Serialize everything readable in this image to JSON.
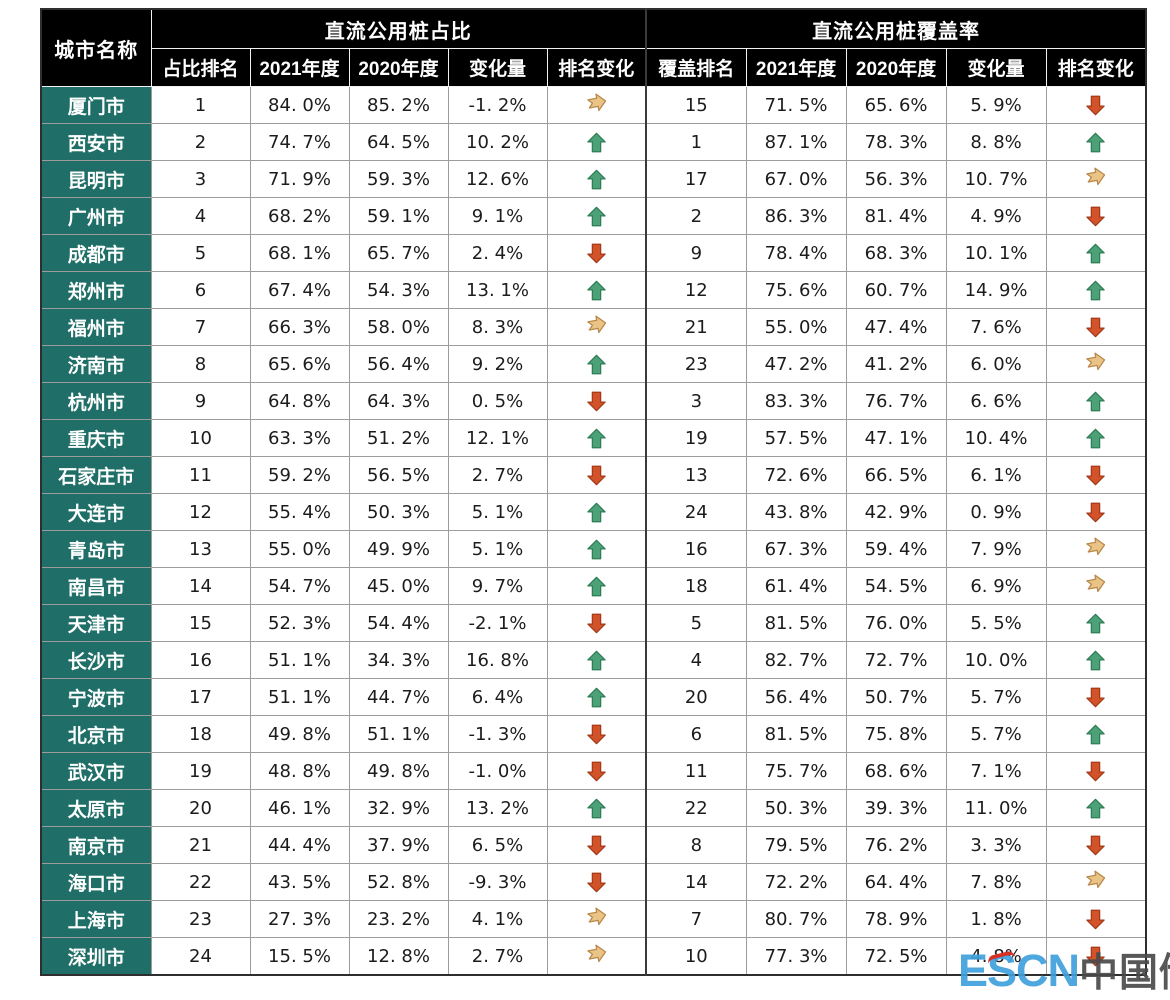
{
  "chart_data": {
    "type": "table",
    "city_header": "城市名称",
    "groups": [
      {
        "title": "直流公用桩占比",
        "columns": [
          "占比排名",
          "2021年度",
          "2020年度",
          "变化量",
          "排名变化"
        ]
      },
      {
        "title": "直流公用桩覆盖率",
        "columns": [
          "覆盖排名",
          "2021年度",
          "2020年度",
          "变化量",
          "排名变化"
        ]
      }
    ],
    "trend_legend": {
      "up": "rank-up",
      "down": "rank-down",
      "right": "rank-unchanged"
    },
    "rows": [
      {
        "city": "厦门市",
        "ratio": {
          "rank": "1",
          "y2021": "84. 0%",
          "y2020": "85. 2%",
          "change": "-1. 2%",
          "trend": "right"
        },
        "coverage": {
          "rank": "15",
          "y2021": "71. 5%",
          "y2020": "65. 6%",
          "change": "5. 9%",
          "trend": "down"
        }
      },
      {
        "city": "西安市",
        "ratio": {
          "rank": "2",
          "y2021": "74. 7%",
          "y2020": "64. 5%",
          "change": "10. 2%",
          "trend": "up"
        },
        "coverage": {
          "rank": "1",
          "y2021": "87. 1%",
          "y2020": "78. 3%",
          "change": "8. 8%",
          "trend": "up"
        }
      },
      {
        "city": "昆明市",
        "ratio": {
          "rank": "3",
          "y2021": "71. 9%",
          "y2020": "59. 3%",
          "change": "12. 6%",
          "trend": "up"
        },
        "coverage": {
          "rank": "17",
          "y2021": "67. 0%",
          "y2020": "56. 3%",
          "change": "10. 7%",
          "trend": "right"
        }
      },
      {
        "city": "广州市",
        "ratio": {
          "rank": "4",
          "y2021": "68. 2%",
          "y2020": "59. 1%",
          "change": "9. 1%",
          "trend": "up"
        },
        "coverage": {
          "rank": "2",
          "y2021": "86. 3%",
          "y2020": "81. 4%",
          "change": "4. 9%",
          "trend": "down"
        }
      },
      {
        "city": "成都市",
        "ratio": {
          "rank": "5",
          "y2021": "68. 1%",
          "y2020": "65. 7%",
          "change": "2. 4%",
          "trend": "down"
        },
        "coverage": {
          "rank": "9",
          "y2021": "78. 4%",
          "y2020": "68. 3%",
          "change": "10. 1%",
          "trend": "up"
        }
      },
      {
        "city": "郑州市",
        "ratio": {
          "rank": "6",
          "y2021": "67. 4%",
          "y2020": "54. 3%",
          "change": "13. 1%",
          "trend": "up"
        },
        "coverage": {
          "rank": "12",
          "y2021": "75. 6%",
          "y2020": "60. 7%",
          "change": "14. 9%",
          "trend": "up"
        }
      },
      {
        "city": "福州市",
        "ratio": {
          "rank": "7",
          "y2021": "66. 3%",
          "y2020": "58. 0%",
          "change": "8. 3%",
          "trend": "right"
        },
        "coverage": {
          "rank": "21",
          "y2021": "55. 0%",
          "y2020": "47. 4%",
          "change": "7. 6%",
          "trend": "down"
        }
      },
      {
        "city": "济南市",
        "ratio": {
          "rank": "8",
          "y2021": "65. 6%",
          "y2020": "56. 4%",
          "change": "9. 2%",
          "trend": "up"
        },
        "coverage": {
          "rank": "23",
          "y2021": "47. 2%",
          "y2020": "41. 2%",
          "change": "6. 0%",
          "trend": "right"
        }
      },
      {
        "city": "杭州市",
        "ratio": {
          "rank": "9",
          "y2021": "64. 8%",
          "y2020": "64. 3%",
          "change": "0. 5%",
          "trend": "down"
        },
        "coverage": {
          "rank": "3",
          "y2021": "83. 3%",
          "y2020": "76. 7%",
          "change": "6. 6%",
          "trend": "up"
        }
      },
      {
        "city": "重庆市",
        "ratio": {
          "rank": "10",
          "y2021": "63. 3%",
          "y2020": "51. 2%",
          "change": "12. 1%",
          "trend": "up"
        },
        "coverage": {
          "rank": "19",
          "y2021": "57. 5%",
          "y2020": "47. 1%",
          "change": "10. 4%",
          "trend": "up"
        }
      },
      {
        "city": "石家庄市",
        "ratio": {
          "rank": "11",
          "y2021": "59. 2%",
          "y2020": "56. 5%",
          "change": "2. 7%",
          "trend": "down"
        },
        "coverage": {
          "rank": "13",
          "y2021": "72. 6%",
          "y2020": "66. 5%",
          "change": "6. 1%",
          "trend": "down"
        }
      },
      {
        "city": "大连市",
        "ratio": {
          "rank": "12",
          "y2021": "55. 4%",
          "y2020": "50. 3%",
          "change": "5. 1%",
          "trend": "up"
        },
        "coverage": {
          "rank": "24",
          "y2021": "43. 8%",
          "y2020": "42. 9%",
          "change": "0. 9%",
          "trend": "down"
        }
      },
      {
        "city": "青岛市",
        "ratio": {
          "rank": "13",
          "y2021": "55. 0%",
          "y2020": "49. 9%",
          "change": "5. 1%",
          "trend": "up"
        },
        "coverage": {
          "rank": "16",
          "y2021": "67. 3%",
          "y2020": "59. 4%",
          "change": "7. 9%",
          "trend": "right"
        }
      },
      {
        "city": "南昌市",
        "ratio": {
          "rank": "14",
          "y2021": "54. 7%",
          "y2020": "45. 0%",
          "change": "9. 7%",
          "trend": "up"
        },
        "coverage": {
          "rank": "18",
          "y2021": "61. 4%",
          "y2020": "54. 5%",
          "change": "6. 9%",
          "trend": "right"
        }
      },
      {
        "city": "天津市",
        "ratio": {
          "rank": "15",
          "y2021": "52. 3%",
          "y2020": "54. 4%",
          "change": "-2. 1%",
          "trend": "down"
        },
        "coverage": {
          "rank": "5",
          "y2021": "81. 5%",
          "y2020": "76. 0%",
          "change": "5. 5%",
          "trend": "up"
        }
      },
      {
        "city": "长沙市",
        "ratio": {
          "rank": "16",
          "y2021": "51. 1%",
          "y2020": "34. 3%",
          "change": "16. 8%",
          "trend": "up"
        },
        "coverage": {
          "rank": "4",
          "y2021": "82. 7%",
          "y2020": "72. 7%",
          "change": "10. 0%",
          "trend": "up"
        }
      },
      {
        "city": "宁波市",
        "ratio": {
          "rank": "17",
          "y2021": "51. 1%",
          "y2020": "44. 7%",
          "change": "6. 4%",
          "trend": "up"
        },
        "coverage": {
          "rank": "20",
          "y2021": "56. 4%",
          "y2020": "50. 7%",
          "change": "5. 7%",
          "trend": "down"
        }
      },
      {
        "city": "北京市",
        "ratio": {
          "rank": "18",
          "y2021": "49. 8%",
          "y2020": "51. 1%",
          "change": "-1. 3%",
          "trend": "down"
        },
        "coverage": {
          "rank": "6",
          "y2021": "81. 5%",
          "y2020": "75. 8%",
          "change": "5. 7%",
          "trend": "up"
        }
      },
      {
        "city": "武汉市",
        "ratio": {
          "rank": "19",
          "y2021": "48. 8%",
          "y2020": "49. 8%",
          "change": "-1. 0%",
          "trend": "down"
        },
        "coverage": {
          "rank": "11",
          "y2021": "75. 7%",
          "y2020": "68. 6%",
          "change": "7. 1%",
          "trend": "down"
        }
      },
      {
        "city": "太原市",
        "ratio": {
          "rank": "20",
          "y2021": "46. 1%",
          "y2020": "32. 9%",
          "change": "13. 2%",
          "trend": "up"
        },
        "coverage": {
          "rank": "22",
          "y2021": "50. 3%",
          "y2020": "39. 3%",
          "change": "11. 0%",
          "trend": "up"
        }
      },
      {
        "city": "南京市",
        "ratio": {
          "rank": "21",
          "y2021": "44. 4%",
          "y2020": "37. 9%",
          "change": "6. 5%",
          "trend": "down"
        },
        "coverage": {
          "rank": "8",
          "y2021": "79. 5%",
          "y2020": "76. 2%",
          "change": "3. 3%",
          "trend": "down"
        }
      },
      {
        "city": "海口市",
        "ratio": {
          "rank": "22",
          "y2021": "43. 5%",
          "y2020": "52. 8%",
          "change": "-9. 3%",
          "trend": "down"
        },
        "coverage": {
          "rank": "14",
          "y2021": "72. 2%",
          "y2020": "64. 4%",
          "change": "7. 8%",
          "trend": "right"
        }
      },
      {
        "city": "上海市",
        "ratio": {
          "rank": "23",
          "y2021": "27. 3%",
          "y2020": "23. 2%",
          "change": "4. 1%",
          "trend": "right"
        },
        "coverage": {
          "rank": "7",
          "y2021": "80. 7%",
          "y2020": "78. 9%",
          "change": "1. 8%",
          "trend": "down"
        }
      },
      {
        "city": "深圳市",
        "ratio": {
          "rank": "24",
          "y2021": "15. 5%",
          "y2020": "12. 8%",
          "change": "2. 7%",
          "trend": "right"
        },
        "coverage": {
          "rank": "10",
          "y2021": "77. 3%",
          "y2020": "72. 5%",
          "change": "4. 8%",
          "trend": "down"
        }
      }
    ]
  },
  "colors": {
    "header_bg": "#000000",
    "header_text": "#ffffff",
    "city_bg": "#1f6f68",
    "city_text": "#ffffff",
    "up_arrow": {
      "fill": "#4da178",
      "stroke": "#2f7d55"
    },
    "down_arrow": {
      "fill": "#d2522a",
      "stroke": "#a53a18"
    },
    "right_arrow": {
      "fill": "#eac386",
      "stroke": "#b9894a"
    }
  },
  "watermark": {
    "escn": "ESCN",
    "cn": "中国储能网",
    "escn_color": "#3fa0dc",
    "cn_color": "#4a4a4a"
  }
}
